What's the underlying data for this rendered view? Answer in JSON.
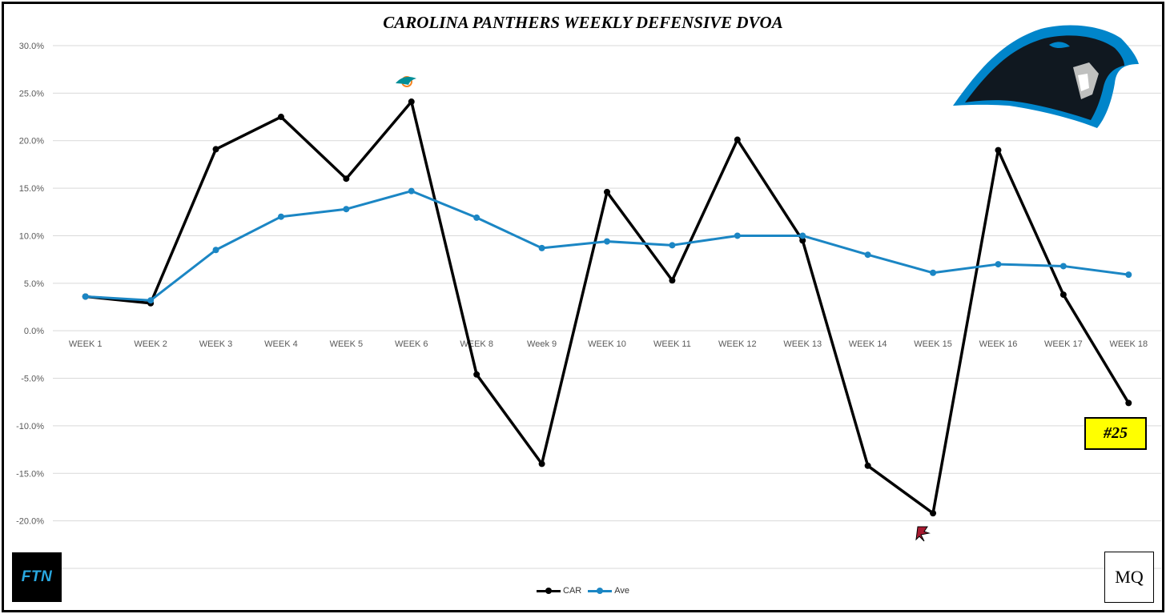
{
  "title": "CAROLINA PANTHERS WEEKLY DEFENSIVE DVOA",
  "rank_badge": "#25",
  "logos": {
    "left": "FTN",
    "right": "MQ"
  },
  "colors": {
    "car": "#000000",
    "ave": "#1b86c4",
    "rank_bg": "#ffff00",
    "panther_blue": "#0085ca"
  },
  "icons": {
    "panther": "carolina-panthers-logo",
    "dolphins": "miami-dolphins-logo",
    "falcons": "atlanta-falcons-logo"
  },
  "chart_data": {
    "type": "line",
    "title": "CAROLINA PANTHERS WEEKLY DEFENSIVE DVOA",
    "categories": [
      "WEEK 1",
      "WEEK 2",
      "WEEK 3",
      "WEEK 4",
      "WEEK 5",
      "WEEK 6",
      "WEEK 8",
      "Week 9",
      "WEEK 10",
      "WEEK 11",
      "WEEK 12",
      "WEEK 13",
      "WEEK 14",
      "WEEK 15",
      "WEEK 16",
      "WEEK 17",
      "WEEK 18"
    ],
    "series": [
      {
        "name": "CAR",
        "color": "#000000",
        "values": [
          3.6,
          2.9,
          19.1,
          22.5,
          16.0,
          24.1,
          -4.6,
          -14.0,
          14.6,
          5.3,
          20.1,
          9.5,
          -14.2,
          -19.2,
          19.0,
          3.8,
          -7.6
        ]
      },
      {
        "name": "Ave",
        "color": "#1b86c4",
        "values": [
          3.6,
          3.2,
          8.5,
          12.0,
          12.8,
          14.7,
          11.9,
          8.7,
          9.4,
          9.0,
          10.0,
          10.0,
          8.0,
          6.1,
          7.0,
          6.8,
          5.9
        ]
      }
    ],
    "ylim": [
      -25,
      30
    ],
    "yticks": [
      "30.0%",
      "25.0%",
      "20.0%",
      "15.0%",
      "10.0%",
      "5.0%",
      "0.0%",
      "-5.0%",
      "-10.0%",
      "-15.0%",
      "-20.0%"
    ],
    "xlabel": "",
    "ylabel": "",
    "grid": true,
    "legend": "bottom-center"
  }
}
